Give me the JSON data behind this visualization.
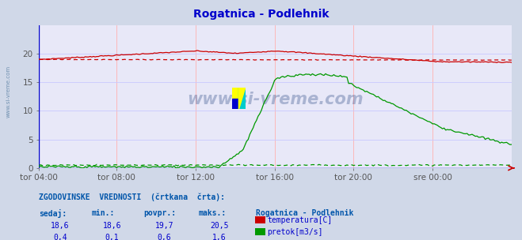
{
  "title": "Rogatnica - Podlehnik",
  "title_color": "#0000cc",
  "bg_color": "#d0d8e8",
  "plot_bg_color": "#e8e8f8",
  "grid_color": "#ffb0b0",
  "grid_color2": "#c8c8ff",
  "watermark_text": "www.si-vreme.com",
  "watermark_color": "#1a3a7a",
  "sidebar_text": "www.si-vreme.com",
  "sidebar_color": "#7090b0",
  "x_labels": [
    "tor 04:00",
    "tor 08:00",
    "tor 12:00",
    "tor 16:00",
    "tor 20:00",
    "sre 00:00"
  ],
  "x_ticks_frac": [
    0.0,
    0.1667,
    0.3333,
    0.5,
    0.6667,
    0.8333
  ],
  "total_points": 288,
  "temp_color": "#cc0000",
  "flow_color": "#009900",
  "ylim": [
    0,
    25
  ],
  "yticks": [
    0,
    5,
    10,
    15,
    20
  ],
  "flow_ylim": [
    0,
    2.5
  ],
  "legend_title": "Rogatnica - Podlehnik",
  "legend_items": [
    "temperatura[C]",
    "pretok[m3/s]"
  ],
  "stats_header": "ZGODOVINSKE  VREDNOSTI  (črtkana  črta):",
  "col_headers": [
    "sedaj:",
    "min.:",
    "povpr.:",
    "maks.:"
  ],
  "temp_stats": [
    "18,6",
    "18,6",
    "19,7",
    "20,5"
  ],
  "flow_stats": [
    "0,4",
    "0,1",
    "0,6",
    "1,6"
  ],
  "stats_color": "#0000cc",
  "header_color": "#0055aa",
  "axis_color": "#0000cc",
  "tick_color": "#555555"
}
